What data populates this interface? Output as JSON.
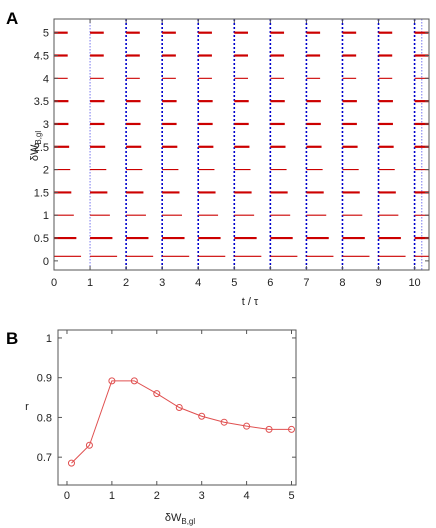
{
  "chart_data": [
    {
      "panel_label": "A",
      "type": "line",
      "xlabel": "t / τ",
      "ylabel_main": "δW",
      "ylabel_sub": "B,gl",
      "xlim": [
        0,
        10.4
      ],
      "ylim": [
        -0.2,
        5.3
      ],
      "xticks": [
        "0",
        "1",
        "2",
        "3",
        "4",
        "5",
        "6",
        "7",
        "8",
        "9",
        "10"
      ],
      "yticks": [
        "0",
        "0.5",
        "1",
        "1.5",
        "2",
        "2.5",
        "3",
        "3.5",
        "4",
        "4.5",
        "5"
      ],
      "colors": {
        "bursts": "#cc0000",
        "sweeps": "#0000cc",
        "sweeps_faint": "#7777ee"
      },
      "bursts": {
        "levels": [
          0.1,
          0.5,
          1,
          1.5,
          2,
          2.5,
          3,
          3.5,
          4,
          4.5,
          5
        ],
        "starts": [
          0,
          1,
          2,
          3,
          4,
          5,
          6,
          7,
          8,
          9,
          10
        ],
        "lengths": [
          0.75,
          0.62,
          0.55,
          0.48,
          0.45,
          0.42,
          0.4,
          0.4,
          0.38,
          0.38,
          0.38
        ],
        "strong_levels": [
          0.5,
          1.5,
          2.5,
          3,
          3.5,
          4.5,
          5
        ]
      },
      "sweeps": {
        "strong_x": [
          2,
          3,
          4,
          5,
          6,
          7,
          8,
          9,
          10
        ],
        "faint_x": [
          1,
          10.2
        ]
      }
    },
    {
      "panel_label": "B",
      "type": "line",
      "xlabel_main": "δW",
      "xlabel_sub": "B,gl",
      "ylabel": "r",
      "xlim": [
        -0.2,
        5.1
      ],
      "ylim": [
        0.63,
        1.02
      ],
      "xticks": [
        "0",
        "1",
        "2",
        "3",
        "4",
        "5"
      ],
      "yticks": [
        "0.7",
        "0.8",
        "0.9",
        "1"
      ],
      "color": "#e05050",
      "series": [
        {
          "x": [
            0.1,
            0.5,
            1,
            1.5,
            2,
            2.5,
            3,
            3.5,
            4,
            4.5,
            5
          ],
          "y": [
            0.685,
            0.73,
            0.892,
            0.892,
            0.86,
            0.825,
            0.803,
            0.788,
            0.778,
            0.77,
            0.77
          ]
        }
      ]
    }
  ]
}
